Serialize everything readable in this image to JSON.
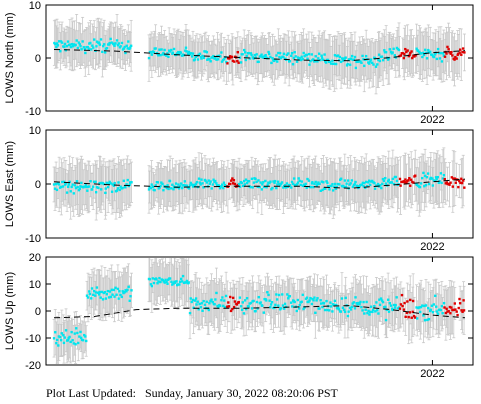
{
  "footer": {
    "label": "Plot Last Updated:",
    "value": "Sunday, January 30, 2022 08:20:06 PST"
  },
  "colors": {
    "normal": "#00e5ee",
    "recent": "#e00000",
    "errorbar": "#c8c8c8",
    "model": "#000000"
  },
  "chart_data": [
    {
      "type": "scatter",
      "ylabel": "LOWS North (mm)",
      "ylim": [
        -10,
        10
      ],
      "yticks": [
        10,
        0,
        -10
      ],
      "x_tick_label": "2022",
      "xlim": [
        "2021-01-15",
        "2022-02-10"
      ],
      "model_trend": [
        [
          0.0,
          1.6
        ],
        [
          0.15,
          1.3
        ],
        [
          0.3,
          0.6
        ],
        [
          0.45,
          0.1
        ],
        [
          0.6,
          -0.4
        ],
        [
          0.72,
          -0.5
        ],
        [
          0.82,
          0.1
        ],
        [
          0.92,
          1.0
        ],
        [
          1.0,
          1.4
        ]
      ],
      "segments": [
        {
          "from": 0.0,
          "to": 0.19,
          "mean": 2.3,
          "spread": 1.8,
          "err": 3.8
        },
        {
          "from": 0.23,
          "to": 0.33,
          "mean": 1.0,
          "spread": 1.5,
          "err": 3.5
        },
        {
          "from": 0.33,
          "to": 0.65,
          "mean": 0.2,
          "spread": 1.6,
          "err": 3.6
        },
        {
          "from": 0.65,
          "to": 0.8,
          "mean": -0.5,
          "spread": 1.8,
          "err": 4.0
        },
        {
          "from": 0.8,
          "to": 1.0,
          "mean": 0.8,
          "spread": 1.8,
          "err": 4.0
        }
      ],
      "recent_ranges": [
        [
          0.42,
          0.45
        ],
        [
          0.84,
          0.88
        ],
        [
          0.95,
          1.0
        ]
      ]
    },
    {
      "type": "scatter",
      "ylabel": "LOWS East (mm)",
      "ylim": [
        -10,
        10
      ],
      "yticks": [
        10,
        0,
        -10
      ],
      "x_tick_label": "2022",
      "xlim": [
        "2021-01-15",
        "2022-02-10"
      ],
      "model_trend": [
        [
          0.0,
          0.4
        ],
        [
          0.15,
          -0.2
        ],
        [
          0.3,
          -0.6
        ],
        [
          0.45,
          -0.4
        ],
        [
          0.6,
          -0.4
        ],
        [
          0.72,
          -0.8
        ],
        [
          0.82,
          -0.2
        ],
        [
          0.92,
          0.4
        ],
        [
          1.0,
          0.9
        ]
      ],
      "segments": [
        {
          "from": 0.0,
          "to": 0.19,
          "mean": -0.5,
          "spread": 1.8,
          "err": 4.0
        },
        {
          "from": 0.23,
          "to": 0.33,
          "mean": -0.5,
          "spread": 1.4,
          "err": 3.8
        },
        {
          "from": 0.33,
          "to": 0.65,
          "mean": 0.0,
          "spread": 1.5,
          "err": 3.8
        },
        {
          "from": 0.65,
          "to": 0.8,
          "mean": -0.2,
          "spread": 1.6,
          "err": 4.0
        },
        {
          "from": 0.8,
          "to": 1.0,
          "mean": 0.6,
          "spread": 1.8,
          "err": 4.2
        }
      ],
      "recent_ranges": [
        [
          0.42,
          0.45
        ],
        [
          0.84,
          0.88
        ],
        [
          0.95,
          1.0
        ]
      ]
    },
    {
      "type": "scatter",
      "ylabel": "LOWS Up (mm)",
      "ylim": [
        -20,
        20
      ],
      "yticks": [
        20,
        10,
        0,
        -10,
        -20
      ],
      "x_tick_label": "2022",
      "xlim": [
        "2021-01-15",
        "2022-02-10"
      ],
      "model_trend": [
        [
          0.0,
          -2.5
        ],
        [
          0.1,
          -2.0
        ],
        [
          0.2,
          0.5
        ],
        [
          0.3,
          1.0
        ],
        [
          0.45,
          1.0
        ],
        [
          0.6,
          1.5
        ],
        [
          0.72,
          2.0
        ],
        [
          0.82,
          0.5
        ],
        [
          0.92,
          -1.5
        ],
        [
          1.0,
          -2.5
        ]
      ],
      "segments": [
        {
          "from": 0.0,
          "to": 0.08,
          "mean": -10.0,
          "spread": 4.0,
          "err": 7.0
        },
        {
          "from": 0.08,
          "to": 0.19,
          "mean": 7.0,
          "spread": 4.5,
          "err": 7.5
        },
        {
          "from": 0.23,
          "to": 0.33,
          "mean": 11.0,
          "spread": 3.5,
          "err": 7.5
        },
        {
          "from": 0.33,
          "to": 0.65,
          "mean": 3.0,
          "spread": 5.0,
          "err": 7.5
        },
        {
          "from": 0.65,
          "to": 0.8,
          "mean": 2.0,
          "spread": 5.0,
          "err": 7.5
        },
        {
          "from": 0.8,
          "to": 1.0,
          "mean": 1.0,
          "spread": 6.0,
          "err": 8.0
        }
      ],
      "recent_ranges": [
        [
          0.42,
          0.45
        ],
        [
          0.84,
          0.88
        ],
        [
          0.95,
          1.0
        ]
      ]
    }
  ]
}
